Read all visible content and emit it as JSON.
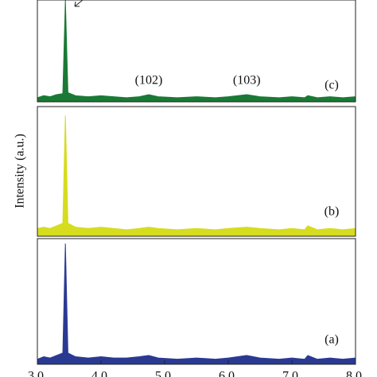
{
  "chart_data": [
    {
      "type": "area",
      "label": "(c)",
      "color": "#1a7a35",
      "x": [
        30,
        31,
        32,
        33,
        34,
        34.4,
        34.8,
        36,
        38,
        40,
        42,
        44,
        46,
        47.5,
        49,
        52,
        55,
        58,
        60,
        62.9,
        65,
        68,
        70,
        72,
        72.5,
        74,
        76,
        78,
        80
      ],
      "values": [
        4,
        6,
        5,
        7,
        8,
        100,
        9,
        6,
        5,
        6,
        5,
        4,
        5,
        7,
        5,
        4,
        5,
        4,
        5,
        7,
        5,
        4,
        5,
        4,
        6,
        4,
        5,
        4,
        5
      ],
      "ylim": [
        0,
        100
      ],
      "xlim": [
        30,
        80
      ],
      "annotations": [
        {
          "text": "(102)",
          "x": 47.5
        },
        {
          "text": "(103)",
          "x": 62.9
        }
      ]
    },
    {
      "type": "area",
      "label": "(b)",
      "color": "#d6dc1e",
      "x": [
        30,
        31,
        32,
        33,
        34,
        34.4,
        34.8,
        36,
        38,
        40,
        42,
        44,
        46,
        47.5,
        49,
        52,
        55,
        58,
        60,
        62.9,
        65,
        68,
        70,
        72,
        72.5,
        74,
        76,
        78,
        80
      ],
      "values": [
        6,
        7,
        6,
        8,
        10,
        93,
        10,
        7,
        6,
        7,
        6,
        5,
        6,
        7,
        6,
        5,
        6,
        5,
        6,
        7,
        6,
        5,
        6,
        5,
        8,
        5,
        6,
        5,
        6
      ],
      "ylim": [
        0,
        100
      ],
      "xlim": [
        30,
        80
      ],
      "ylabel": "Intensity (a.u.)"
    },
    {
      "type": "area",
      "label": "(a)",
      "color": "#2a3a93",
      "x": [
        30,
        31,
        32,
        33,
        34,
        34.4,
        34.8,
        36,
        38,
        40,
        42,
        44,
        46,
        47.5,
        49,
        52,
        55,
        58,
        60,
        62.9,
        65,
        68,
        70,
        72,
        72.5,
        74,
        76,
        78,
        80
      ],
      "values": [
        4,
        6,
        5,
        7,
        9,
        96,
        9,
        6,
        5,
        6,
        5,
        5,
        6,
        7,
        5,
        4,
        5,
        4,
        5,
        7,
        5,
        4,
        5,
        4,
        7,
        4,
        5,
        4,
        5
      ],
      "ylim": [
        0,
        100
      ],
      "xlim": [
        30,
        80
      ],
      "xticks": [
        30,
        40,
        50,
        60,
        70,
        80
      ]
    }
  ]
}
